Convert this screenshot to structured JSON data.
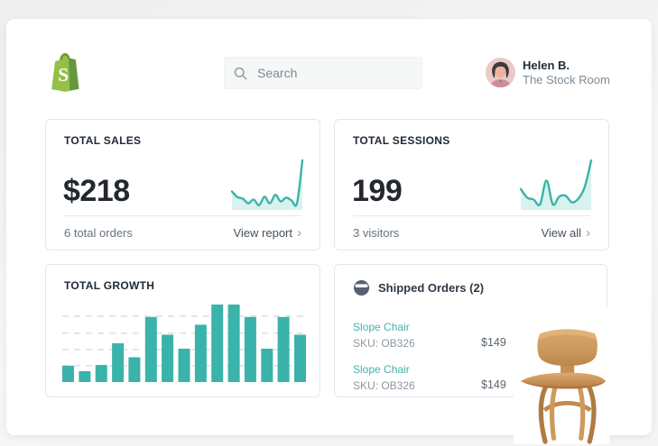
{
  "header": {
    "search_placeholder": "Search",
    "user_name": "Helen B.",
    "user_store": "The Stock Room"
  },
  "sales_card": {
    "title": "TOTAL SALES",
    "value": "$218",
    "subtitle": "6 total orders",
    "link_label": "View report",
    "chevron": "›"
  },
  "sessions_card": {
    "title": "TOTAL SESSIONS",
    "value": "199",
    "subtitle": "3 visitors",
    "link_label": "View all",
    "chevron": "›"
  },
  "growth_card": {
    "title": "TOTAL GROWTH"
  },
  "shipped_card": {
    "title": "Shipped Orders (2)",
    "items": [
      {
        "name": "Slope Chair",
        "sku": "SKU: OB326",
        "price": "$149"
      },
      {
        "name": "Slope Chair",
        "sku": "SKU: OB326",
        "price": "$149"
      }
    ]
  },
  "colors": {
    "teal": "#3ab3aa",
    "teal_fill": "#d9f2ee",
    "grid": "#dce1e7",
    "dark_text": "#212b36",
    "gray_text": "#66737f",
    "logo_green": "#95bf47",
    "logo_green_dark": "#5e8e3e"
  },
  "icons": {
    "search": "magnifier-icon",
    "shipped": "package-circle-icon",
    "chevron": "chevron-right"
  },
  "chart_data": [
    {
      "id": "sales_sparkline",
      "type": "area",
      "title": "Total sales 14-point trend (relative units)",
      "x": [
        1,
        2,
        3,
        4,
        5,
        6,
        7,
        8,
        9,
        10,
        11,
        12,
        13,
        14
      ],
      "values": [
        35,
        23,
        20,
        10,
        18,
        6,
        24,
        10,
        28,
        14,
        22,
        16,
        10,
        100
      ],
      "ylim": [
        0,
        100
      ],
      "grid": false,
      "axes_shown": false
    },
    {
      "id": "sessions_sparkline",
      "type": "area",
      "title": "Total sessions 12-point trend (relative units)",
      "x": [
        1,
        2,
        3,
        4,
        5,
        6,
        7,
        8,
        9,
        10,
        11,
        12
      ],
      "values": [
        40,
        22,
        18,
        8,
        58,
        8,
        24,
        26,
        12,
        20,
        45,
        100
      ],
      "ylim": [
        0,
        100
      ],
      "grid": false,
      "axes_shown": false
    },
    {
      "id": "growth_bars",
      "type": "bar",
      "title": "Total growth (15 bars, relative units)",
      "categories": [
        1,
        2,
        3,
        4,
        5,
        6,
        7,
        8,
        9,
        10,
        11,
        12,
        13,
        14,
        15
      ],
      "values": [
        21,
        14,
        22,
        50,
        32,
        84,
        61,
        43,
        74,
        100,
        100,
        84,
        43,
        84,
        61
      ],
      "ylim": [
        0,
        100
      ],
      "grid": true,
      "gridline_style": "dashed",
      "axes_shown": false
    }
  ]
}
